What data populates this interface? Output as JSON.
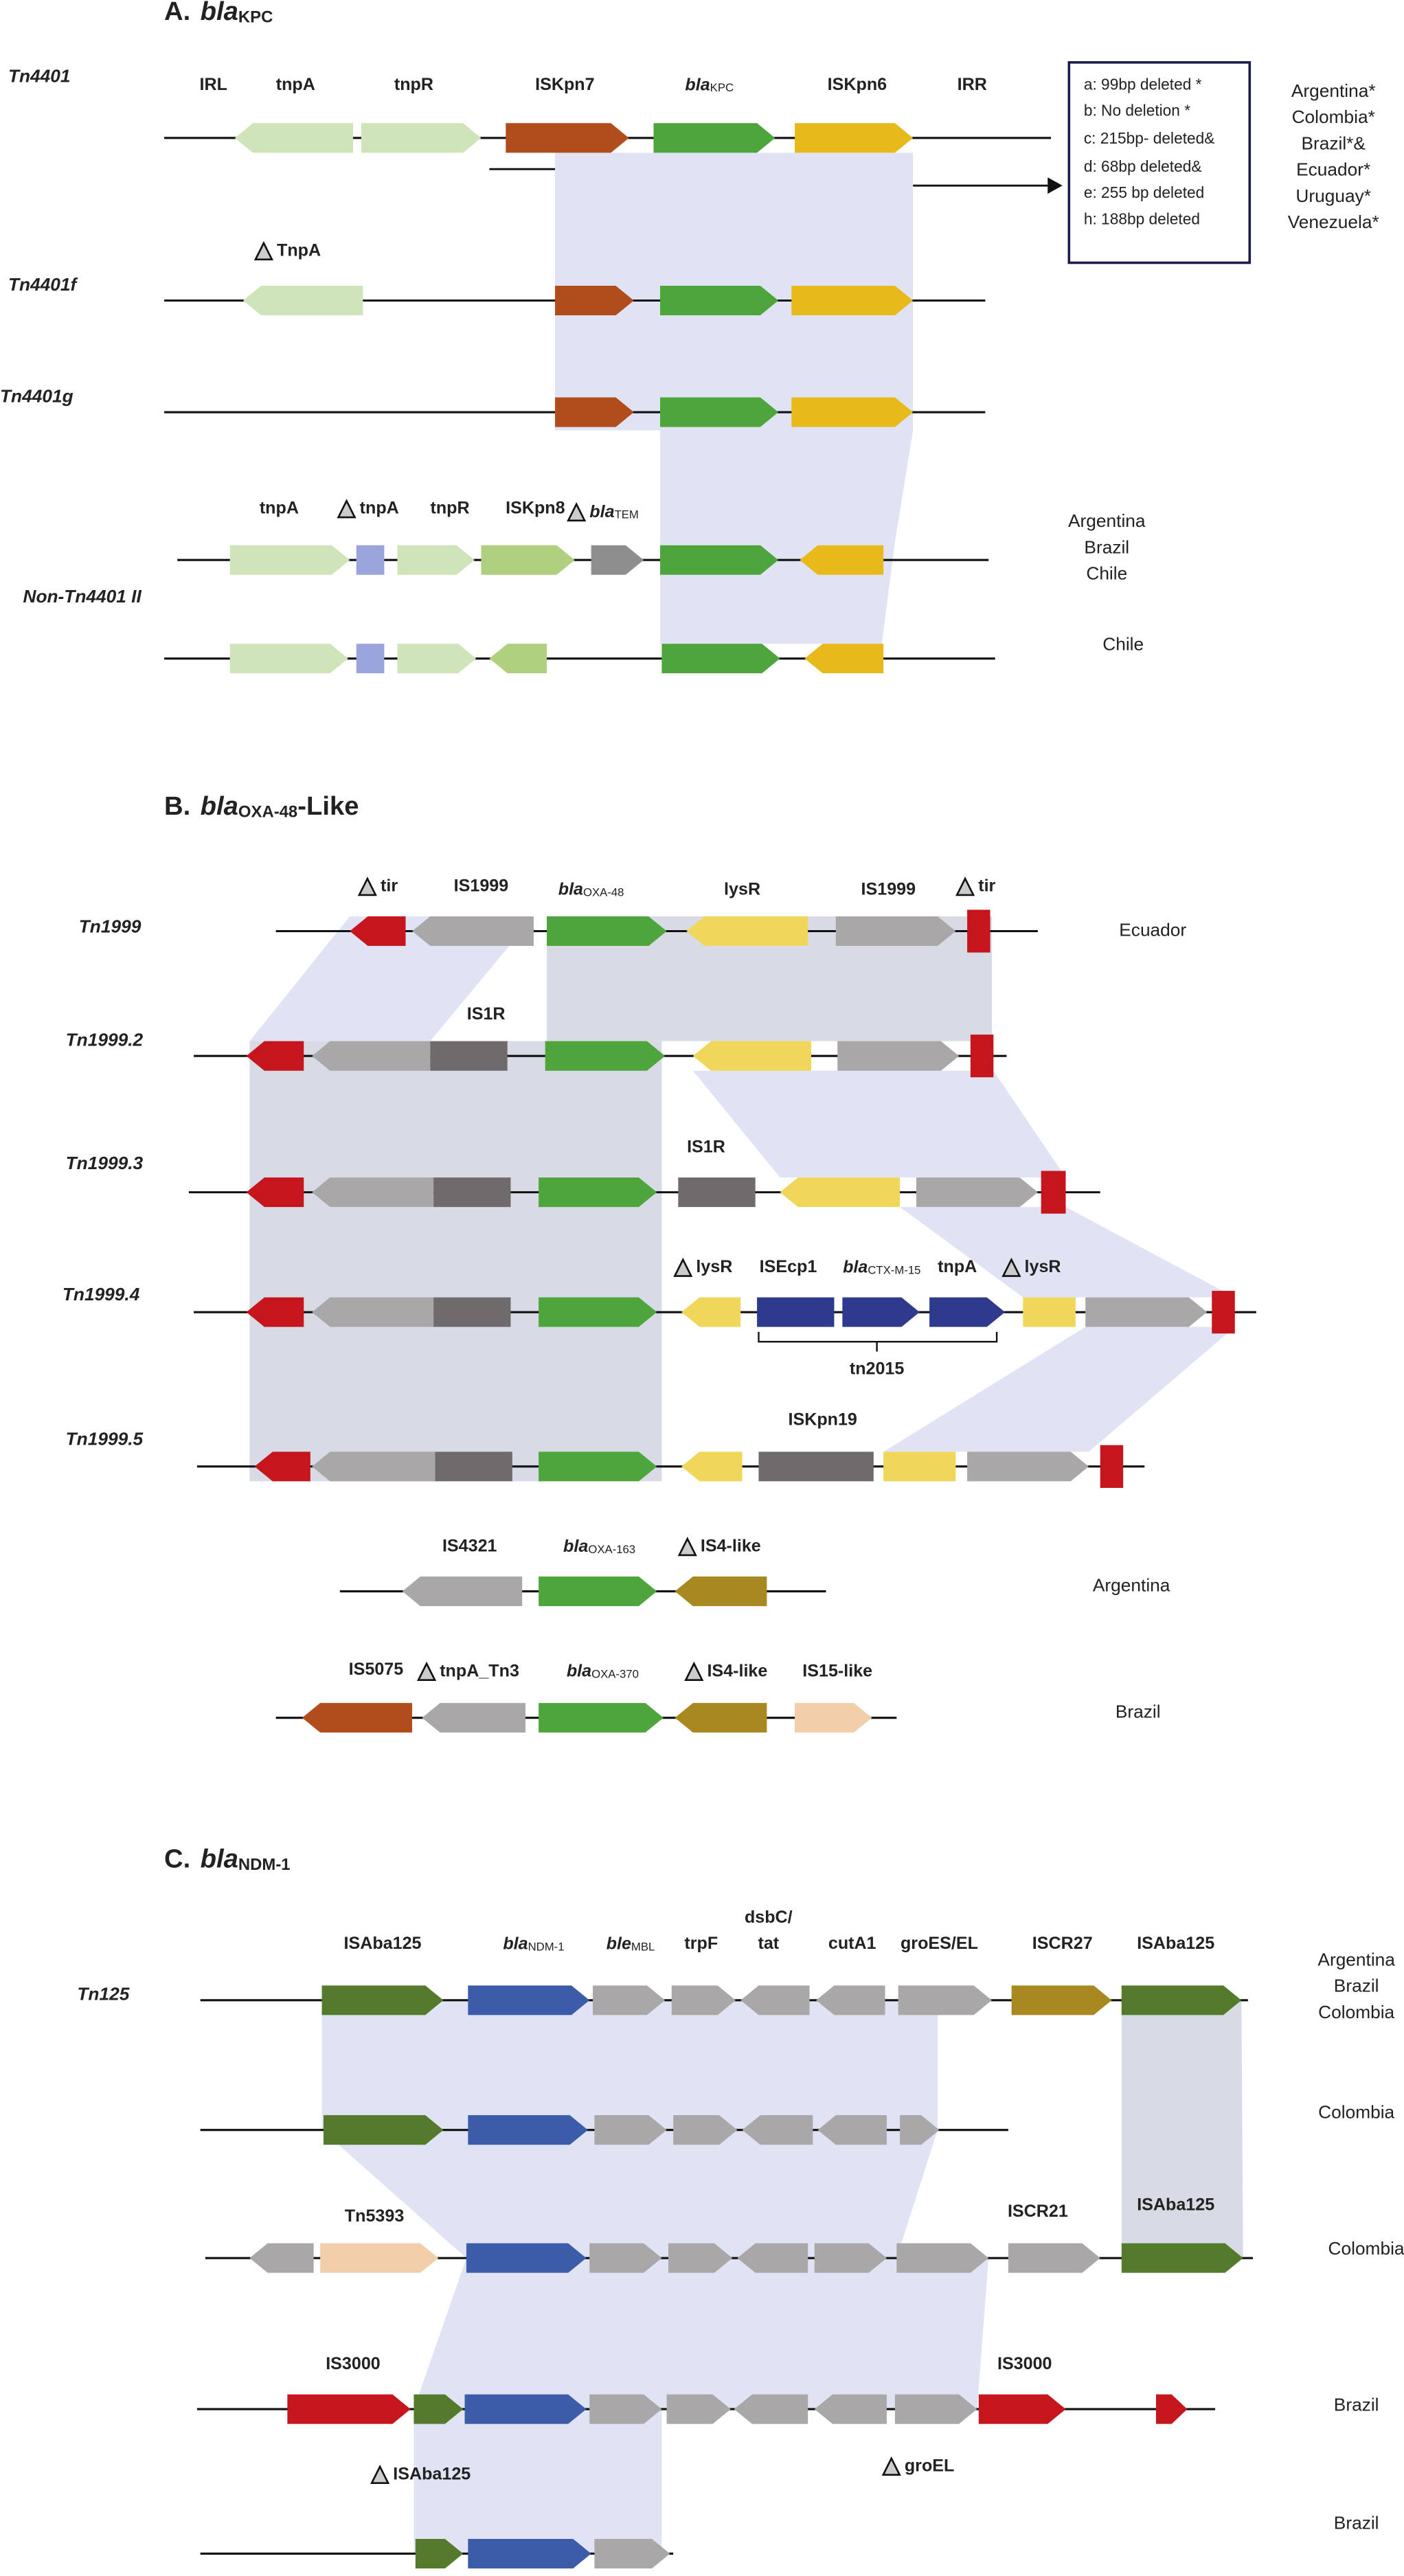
{
  "section_a": {
    "letter": "A.",
    "title": {
      "text": "bla",
      "sub": "KPC"
    },
    "rows": [
      "Tn4401",
      "Tn4401f",
      "Tn4401g",
      "Non-Tn4401 II"
    ],
    "genes": [
      "IRL",
      "tnpA",
      "tnpR",
      "ISKpn7",
      {
        "text": "bla",
        "sub": "KPC"
      },
      "ISKpn6",
      "IRR",
      "TnpA",
      "tnpA",
      "tnpA",
      "tnpR",
      "ISKpn8",
      {
        "text": "bla",
        "sub": "TEM"
      }
    ],
    "deletions": [
      "a: 99bp deleted *",
      "b: No deletion *",
      "c: 215bp- deleted&",
      "d: 68bp deleted&",
      "e: 255 bp deleted",
      "h: 188bp deleted"
    ],
    "countries": [
      "Argentina*",
      "Colombia*",
      "Brazil*&",
      "Ecuador*",
      "Uruguay*",
      "Venezuela*",
      "Argentina",
      "Brazil",
      "Chile",
      "Chile"
    ]
  },
  "section_b": {
    "letter": "B.",
    "title": {
      "text": "bla",
      "sub": "OXA-48"
    },
    "title_suffix": "-Like",
    "rows": [
      "Tn1999",
      "Tn1999.2",
      "Tn1999.3",
      "Tn1999.4",
      "Tn1999.5"
    ],
    "genes": [
      "tir",
      "IS1999",
      {
        "text": "bla",
        "sub": "OXA-48"
      },
      "lysR",
      "IS1999",
      "tir",
      "IS1R",
      "IS1R",
      "lysR",
      "ISEcp1",
      {
        "text": "bla",
        "sub": "CTX-M-15"
      },
      "tnpA",
      "lysR",
      "tn2015",
      "ISKpn19",
      "IS4321",
      {
        "text": "bla",
        "sub": "OXA-163"
      },
      "IS4-like",
      "IS5075",
      "tnpA_Tn3",
      {
        "text": "bla",
        "sub": "OXA-370"
      },
      "IS4-like",
      "IS15-like"
    ],
    "countries": [
      "Ecuador",
      "Argentina",
      "Brazil"
    ]
  },
  "section_c": {
    "letter": "C.",
    "title": {
      "text": "bla",
      "sub": "NDM-1"
    },
    "rows": [
      "Tn125"
    ],
    "genes": [
      "ISAba125",
      {
        "text": "bla",
        "sub": "NDM-1"
      },
      {
        "text": "ble",
        "sub": "MBL"
      },
      "trpF",
      "dsbC/",
      "tat",
      "cutA1",
      "groES/EL",
      "ISCR27",
      "ISAba125",
      "Tn5393",
      "ISCR21",
      "ISAba125",
      "IS3000",
      "IS3000",
      "ISAba125",
      "groEL"
    ],
    "countries": [
      "Argentina",
      "Brazil",
      "Colombia",
      "Colombia",
      "Colombia",
      "Brazil",
      "Brazil"
    ]
  }
}
